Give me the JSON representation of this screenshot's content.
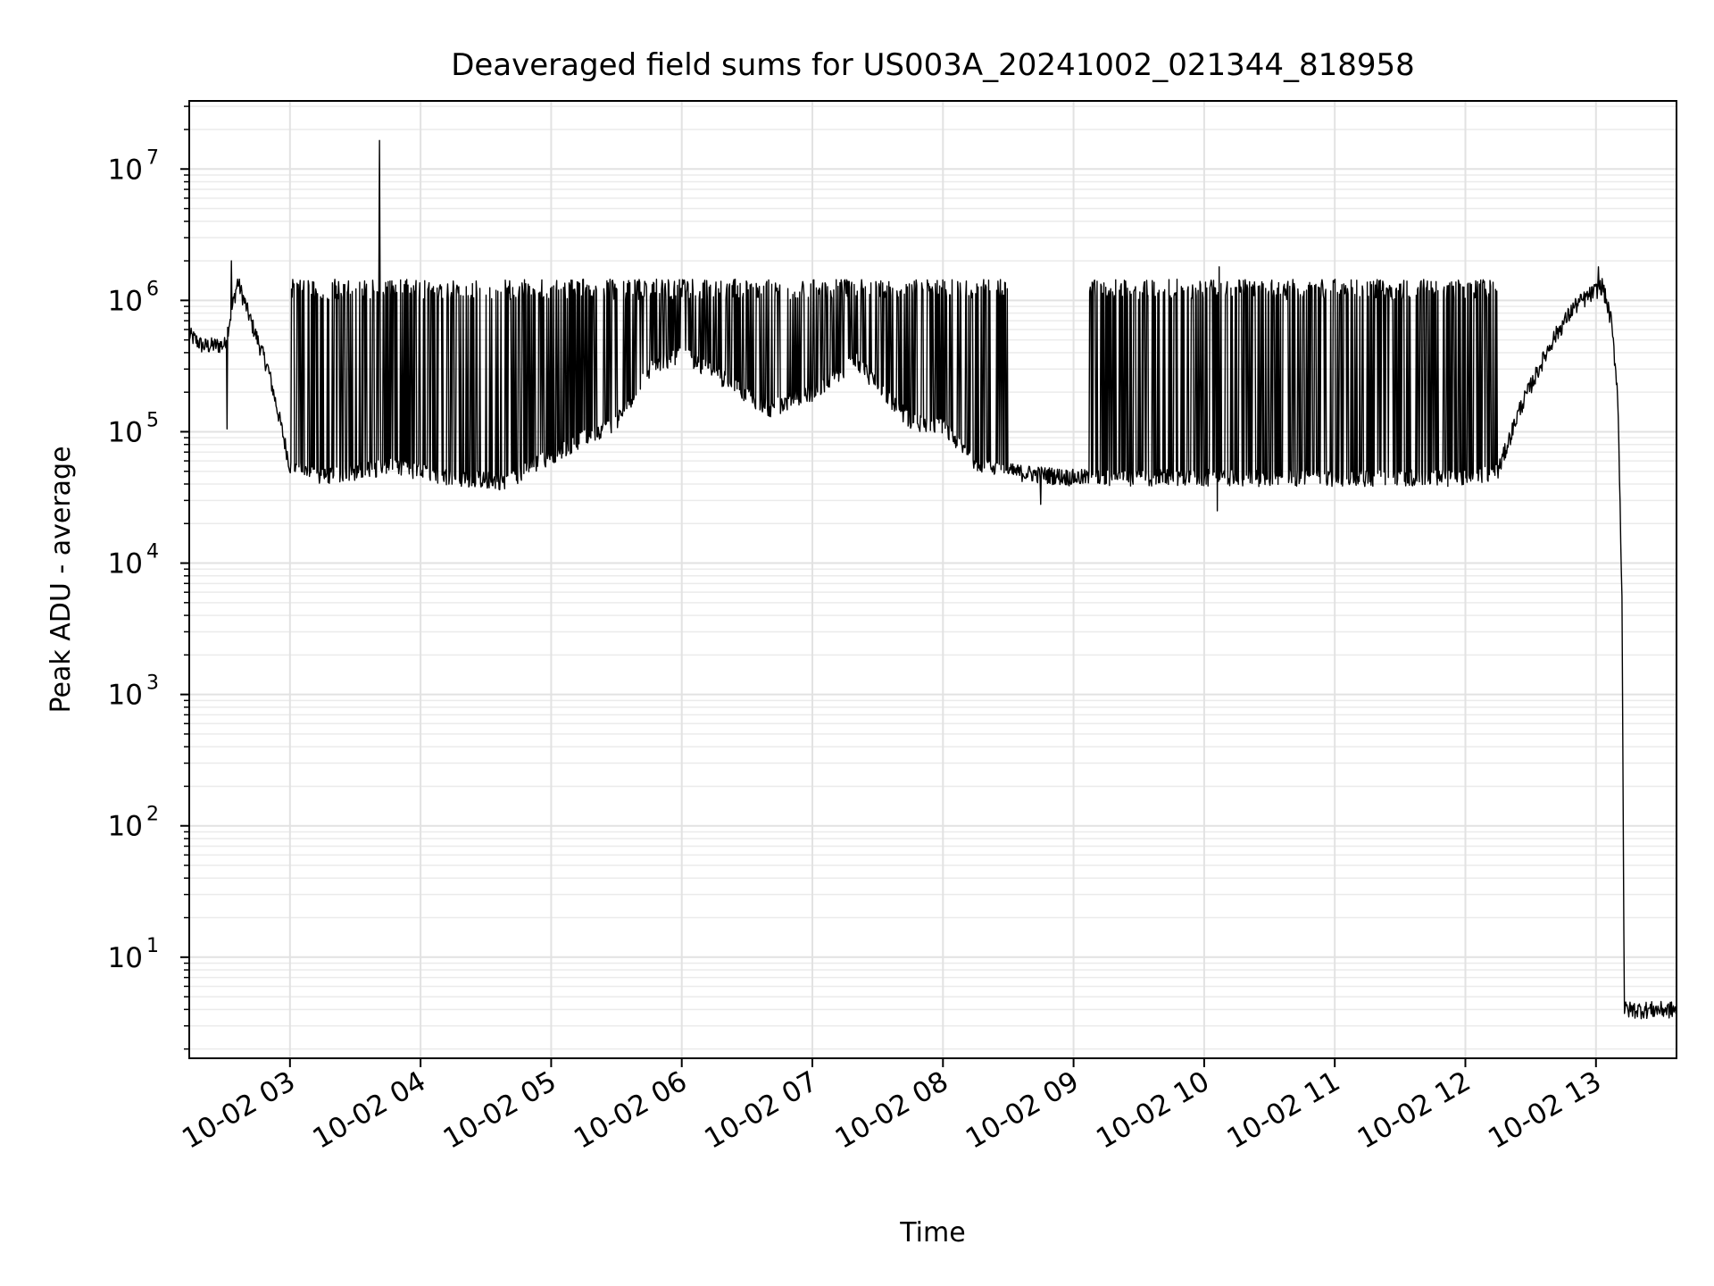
{
  "chart_data": {
    "type": "line",
    "title": "Deaveraged field sums for US003A_20241002_021344_818958",
    "xlabel": "Time",
    "ylabel": "Peak ADU - average",
    "y_scale": "log",
    "ylim": [
      1.7,
      33000000
    ],
    "xlim": [
      "2024-10-02T02:13:44",
      "2024-10-02T13:37:00"
    ],
    "grid": true,
    "line_color": "#000000",
    "x_ticks": [
      {
        "t": "2024-10-02T03:00",
        "label": "10-02 03"
      },
      {
        "t": "2024-10-02T04:00",
        "label": "10-02 04"
      },
      {
        "t": "2024-10-02T05:00",
        "label": "10-02 05"
      },
      {
        "t": "2024-10-02T06:00",
        "label": "10-02 06"
      },
      {
        "t": "2024-10-02T07:00",
        "label": "10-02 07"
      },
      {
        "t": "2024-10-02T08:00",
        "label": "10-02 08"
      },
      {
        "t": "2024-10-02T09:00",
        "label": "10-02 09"
      },
      {
        "t": "2024-10-02T10:00",
        "label": "10-02 10"
      },
      {
        "t": "2024-10-02T11:00",
        "label": "10-02 11"
      },
      {
        "t": "2024-10-02T12:00",
        "label": "10-02 12"
      },
      {
        "t": "2024-10-02T13:00",
        "label": "10-02 13"
      }
    ],
    "y_ticks": [
      {
        "value": 10,
        "base": "10",
        "exp": "1"
      },
      {
        "value": 100,
        "base": "10",
        "exp": "2"
      },
      {
        "value": 1000,
        "base": "10",
        "exp": "3"
      },
      {
        "value": 10000,
        "base": "10",
        "exp": "4"
      },
      {
        "value": 100000,
        "base": "10",
        "exp": "5"
      },
      {
        "value": 1000000,
        "base": "10",
        "exp": "6"
      },
      {
        "value": 10000000,
        "base": "10",
        "exp": "7"
      }
    ],
    "series": [
      {
        "baseline": [
          [
            "2024-10-02T02:13:44",
            550000
          ],
          [
            "2024-10-02T02:20",
            450000
          ],
          [
            "2024-10-02T02:30",
            460000
          ],
          [
            "2024-10-02T02:36",
            1400000
          ],
          [
            "2024-10-02T02:42",
            700000
          ],
          [
            "2024-10-02T02:50",
            300000
          ],
          [
            "2024-10-02T02:55",
            130000
          ],
          [
            "2024-10-02T03:00",
            55000
          ],
          [
            "2024-10-02T03:15",
            45000
          ],
          [
            "2024-10-02T03:45",
            55000
          ],
          [
            "2024-10-02T04:15",
            45000
          ],
          [
            "2024-10-02T04:40",
            42000
          ],
          [
            "2024-10-02T04:55",
            60000
          ],
          [
            "2024-10-02T05:15",
            90000
          ],
          [
            "2024-10-02T05:30",
            120000
          ],
          [
            "2024-10-02T05:45",
            300000
          ],
          [
            "2024-10-02T06:00",
            400000
          ],
          [
            "2024-10-02T06:20",
            250000
          ],
          [
            "2024-10-02T06:40",
            150000
          ],
          [
            "2024-10-02T07:00",
            200000
          ],
          [
            "2024-10-02T07:20",
            350000
          ],
          [
            "2024-10-02T07:45",
            120000
          ],
          [
            "2024-10-02T08:00",
            110000
          ],
          [
            "2024-10-02T08:15",
            60000
          ],
          [
            "2024-10-02T08:30",
            50000
          ],
          [
            "2024-10-02T09:00",
            45000
          ],
          [
            "2024-10-02T10:00",
            45000
          ],
          [
            "2024-10-02T11:00",
            45000
          ],
          [
            "2024-10-02T12:00",
            45000
          ],
          [
            "2024-10-02T12:15",
            50000
          ],
          [
            "2024-10-02T12:25",
            150000
          ],
          [
            "2024-10-02T12:40",
            500000
          ],
          [
            "2024-10-02T12:50",
            900000
          ],
          [
            "2024-10-02T13:03",
            1300000
          ],
          [
            "2024-10-02T13:07",
            700000
          ],
          [
            "2024-10-02T13:10",
            200000
          ],
          [
            "2024-10-02T13:12",
            5000
          ],
          [
            "2024-10-02T13:13",
            4
          ],
          [
            "2024-10-02T13:37:00",
            4
          ]
        ],
        "burst_intervals": [
          [
            "2024-10-02T03:00",
            "2024-10-02T08:30"
          ],
          [
            "2024-10-02T09:07",
            "2024-10-02T12:15"
          ]
        ],
        "burst_peak": 1450000,
        "spikes": [
          [
            "2024-10-02T03:41",
            16500000
          ],
          [
            "2024-10-02T02:33",
            2000000
          ],
          [
            "2024-10-02T02:31",
            105000
          ],
          [
            "2024-10-02T13:01",
            1800000
          ],
          [
            "2024-10-02T10:07",
            1800000
          ],
          [
            "2024-10-02T10:06",
            25000
          ],
          [
            "2024-10-02T08:45",
            28000
          ]
        ]
      }
    ]
  }
}
